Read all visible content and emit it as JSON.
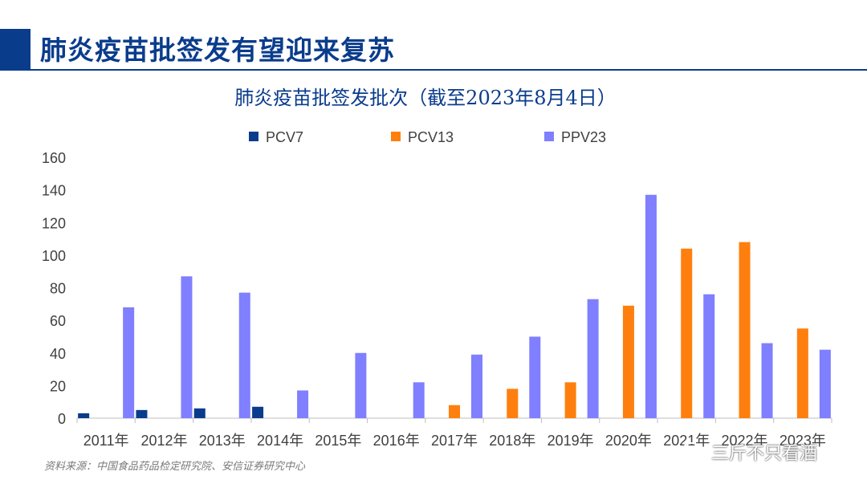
{
  "slide_title": "肺炎疫苗批签发有望迎来复苏",
  "source_note": "资料来源：中国食品药品检定研究院、安信证券研究中心",
  "watermark": {
    "icon": "wechat-icon",
    "text": "三斤不只看酒"
  },
  "chart_data": {
    "type": "bar",
    "title": "肺炎疫苗批签发批次（截至2023年8月4日）",
    "categories": [
      "2011年",
      "2012年",
      "2013年",
      "2014年",
      "2015年",
      "2016年",
      "2017年",
      "2018年",
      "2019年",
      "2020年",
      "2021年",
      "2022年",
      "2023年"
    ],
    "series": [
      {
        "name": "PCV7",
        "color": "#0a3c8c",
        "values": [
          3,
          5,
          6,
          7,
          0,
          0,
          0,
          0,
          0,
          0,
          0,
          0,
          0
        ]
      },
      {
        "name": "PCV13",
        "color": "#ff7f0e",
        "values": [
          0,
          0,
          0,
          0,
          0,
          0,
          8,
          18,
          22,
          69,
          104,
          108,
          55
        ]
      },
      {
        "name": "PPV23",
        "color": "#7f7fff",
        "values": [
          68,
          87,
          77,
          17,
          40,
          22,
          39,
          50,
          73,
          137,
          76,
          46,
          42
        ]
      }
    ],
    "ylim": [
      0,
      160
    ],
    "yticks": [
      0,
      20,
      40,
      60,
      80,
      100,
      120,
      140,
      160
    ],
    "grid": false,
    "legend": "top"
  }
}
